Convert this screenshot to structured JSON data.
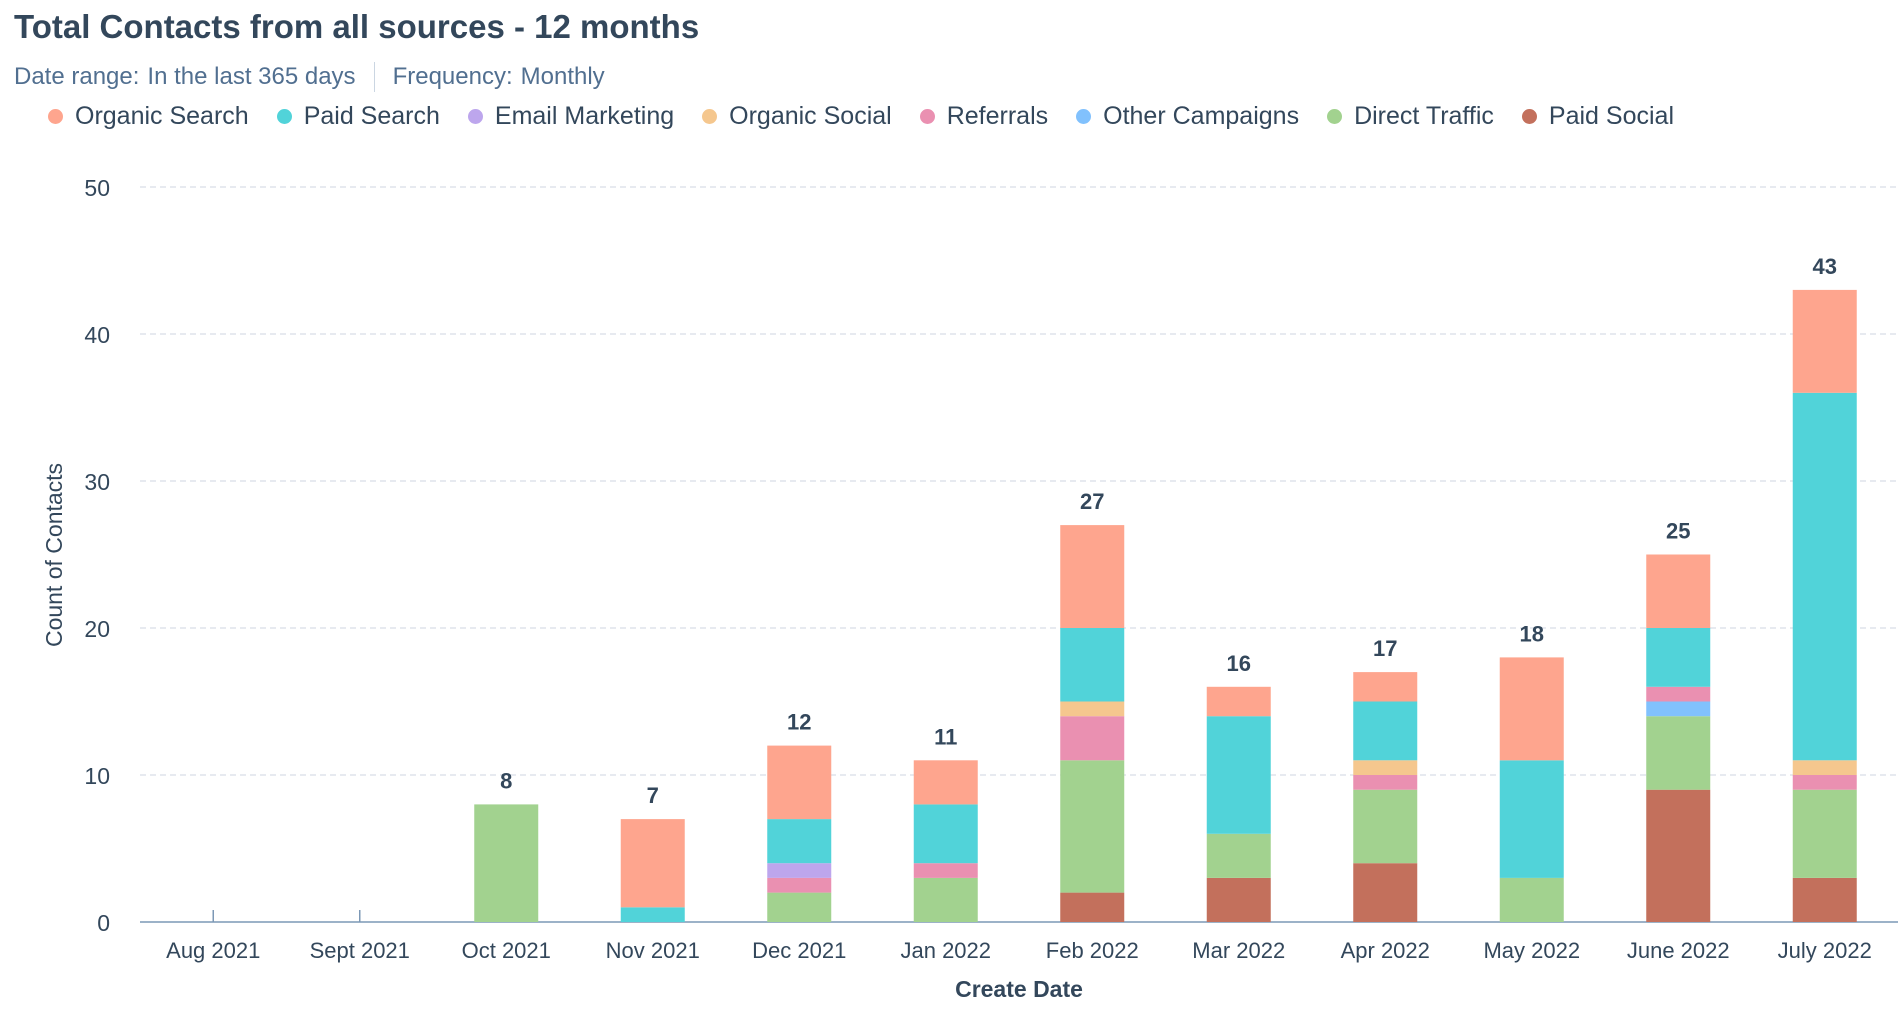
{
  "header": {
    "title": "Total Contacts from all sources - 12 months",
    "date_range_label": "Date range:",
    "date_range_value": "In the last 365 days",
    "frequency_label": "Frequency:",
    "frequency_value": "Monthly"
  },
  "chart_data": {
    "type": "bar",
    "stacked": true,
    "title": "Total Contacts from all sources - 12 months",
    "xlabel": "Create Date",
    "ylabel": "Count of Contacts",
    "ylim": [
      0,
      50
    ],
    "yticks": [
      0,
      10,
      20,
      30,
      40,
      50
    ],
    "grid": true,
    "legend_position": "top",
    "categories": [
      "Aug 2021",
      "Sept 2021",
      "Oct 2021",
      "Nov 2021",
      "Dec 2021",
      "Jan 2022",
      "Feb 2022",
      "Mar 2022",
      "Apr 2022",
      "May 2022",
      "June 2022",
      "July 2022"
    ],
    "totals": [
      null,
      null,
      8,
      7,
      12,
      11,
      27,
      16,
      17,
      18,
      25,
      43
    ],
    "series": [
      {
        "name": "Organic Search",
        "color": "#fea58e",
        "values": [
          0,
          0,
          0,
          6,
          5,
          3,
          7,
          2,
          2,
          7,
          5,
          7
        ]
      },
      {
        "name": "Paid Search",
        "color": "#51d3d9",
        "values": [
          0,
          0,
          0,
          1,
          3,
          4,
          5,
          8,
          4,
          8,
          4,
          25
        ]
      },
      {
        "name": "Email Marketing",
        "color": "#bda6ed",
        "values": [
          0,
          0,
          0,
          0,
          1,
          0,
          0,
          0,
          0,
          0,
          0,
          0
        ]
      },
      {
        "name": "Organic Social",
        "color": "#f5c78e",
        "values": [
          0,
          0,
          0,
          0,
          0,
          0,
          1,
          0,
          1,
          0,
          0,
          1
        ]
      },
      {
        "name": "Referrals",
        "color": "#ea90b1",
        "values": [
          0,
          0,
          0,
          0,
          1,
          1,
          3,
          0,
          1,
          0,
          1,
          1
        ]
      },
      {
        "name": "Other Campaigns",
        "color": "#81c1fd",
        "values": [
          0,
          0,
          0,
          0,
          0,
          0,
          0,
          0,
          0,
          0,
          1,
          0
        ]
      },
      {
        "name": "Direct Traffic",
        "color": "#a2d28f",
        "values": [
          0,
          0,
          8,
          0,
          2,
          3,
          9,
          3,
          5,
          3,
          5,
          6
        ]
      },
      {
        "name": "Paid Social",
        "color": "#c3705c",
        "values": [
          0,
          0,
          0,
          0,
          0,
          0,
          2,
          3,
          4,
          0,
          9,
          3
        ]
      }
    ]
  }
}
